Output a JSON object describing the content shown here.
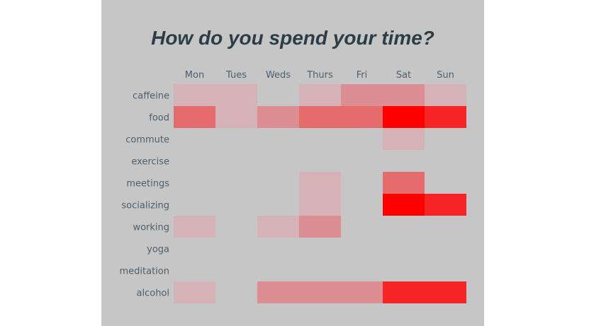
{
  "chart_data": {
    "type": "heatmap",
    "title": "How do you spend your time?",
    "xlabel": "",
    "ylabel": "",
    "columns": [
      "Mon",
      "Tues",
      "Weds",
      "Thurs",
      "Fri",
      "Sat",
      "Sun"
    ],
    "rows": [
      "caffeine",
      "food",
      "commute",
      "exercise",
      "meetings",
      "socializing",
      "working",
      "yoga",
      "meditation",
      "alcohol"
    ],
    "values": [
      [
        1,
        1,
        0,
        1,
        2,
        2,
        1
      ],
      [
        3,
        1,
        2,
        3,
        3,
        6,
        5
      ],
      [
        0,
        0,
        0,
        0,
        0,
        1,
        0
      ],
      [
        0,
        0,
        0,
        0,
        0,
        0,
        0
      ],
      [
        0,
        0,
        0,
        1,
        0,
        3,
        0
      ],
      [
        0,
        0,
        0,
        1,
        0,
        6,
        5
      ],
      [
        1,
        0,
        1,
        2,
        0,
        0,
        0
      ],
      [
        0,
        0,
        0,
        0,
        0,
        0,
        0
      ],
      [
        0,
        0,
        0,
        0,
        0,
        0,
        0
      ],
      [
        1,
        0,
        2,
        2,
        2,
        5,
        5
      ]
    ],
    "vmin": 0,
    "vmax": 6,
    "colors": {
      "background": "#c6c6c6",
      "low": "#d4b2b6",
      "high": "#ff0000",
      "text": "#4e5f6a",
      "title": "#2b3d47"
    },
    "grid": false,
    "legend": "none"
  }
}
